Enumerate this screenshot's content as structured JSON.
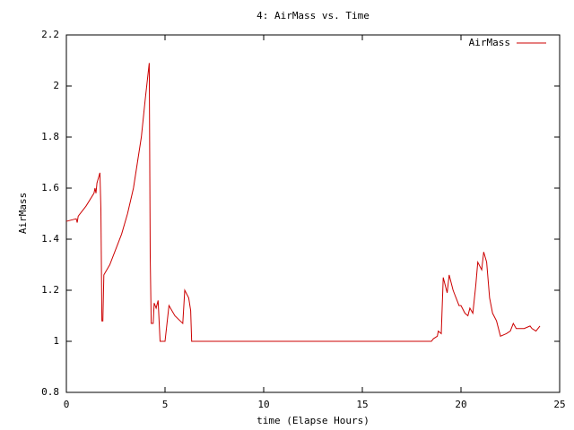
{
  "chart_data": {
    "type": "line",
    "title": "4: AirMass vs. Time",
    "x_label": "time (Elapse Hours)",
    "y_label": "AirMass",
    "x": [
      0,
      0.5,
      0.55,
      0.6,
      1.0,
      1.4,
      1.45,
      1.5,
      1.55,
      1.7,
      1.75,
      1.8,
      1.85,
      1.9,
      2.2,
      2.5,
      2.8,
      3.1,
      3.4,
      3.6,
      3.8,
      4.0,
      4.2,
      4.25,
      4.3,
      4.4,
      4.45,
      4.55,
      4.65,
      4.75,
      5.0,
      5.2,
      5.5,
      5.9,
      6.0,
      6.2,
      6.3,
      6.35,
      18.5,
      18.6,
      18.8,
      18.85,
      19.0,
      19.1,
      19.3,
      19.4,
      19.6,
      19.9,
      20.0,
      20.2,
      20.35,
      20.45,
      20.6,
      20.75,
      20.85,
      21.05,
      21.15,
      21.3,
      21.45,
      21.6,
      21.8,
      22.0,
      22.3,
      22.5,
      22.6,
      22.65,
      22.8,
      23.2,
      23.5,
      23.6,
      23.8,
      24.0
    ],
    "series": [
      {
        "name": "AirMass",
        "color": "#cc0000",
        "values": [
          1.47,
          1.48,
          1.465,
          1.49,
          1.53,
          1.58,
          1.6,
          1.58,
          1.62,
          1.66,
          1.52,
          1.08,
          1.08,
          1.26,
          1.3,
          1.36,
          1.42,
          1.5,
          1.6,
          1.7,
          1.8,
          1.95,
          2.09,
          1.33,
          1.07,
          1.07,
          1.15,
          1.13,
          1.16,
          1.0,
          1.0,
          1.14,
          1.1,
          1.07,
          1.2,
          1.17,
          1.12,
          1.0,
          1.0,
          1.01,
          1.02,
          1.04,
          1.03,
          1.25,
          1.19,
          1.26,
          1.2,
          1.14,
          1.14,
          1.11,
          1.1,
          1.13,
          1.11,
          1.22,
          1.31,
          1.28,
          1.35,
          1.31,
          1.17,
          1.11,
          1.08,
          1.02,
          1.03,
          1.04,
          1.06,
          1.07,
          1.05,
          1.05,
          1.06,
          1.05,
          1.04,
          1.06
        ]
      }
    ],
    "xlim": [
      0,
      25
    ],
    "xticks": [
      0,
      5,
      10,
      15,
      20,
      25
    ],
    "ylim": [
      0.8,
      2.2
    ],
    "yticks": [
      0.8,
      1,
      1.2,
      1.4,
      1.6,
      1.8,
      2,
      2.2
    ],
    "legend": "top-right"
  }
}
